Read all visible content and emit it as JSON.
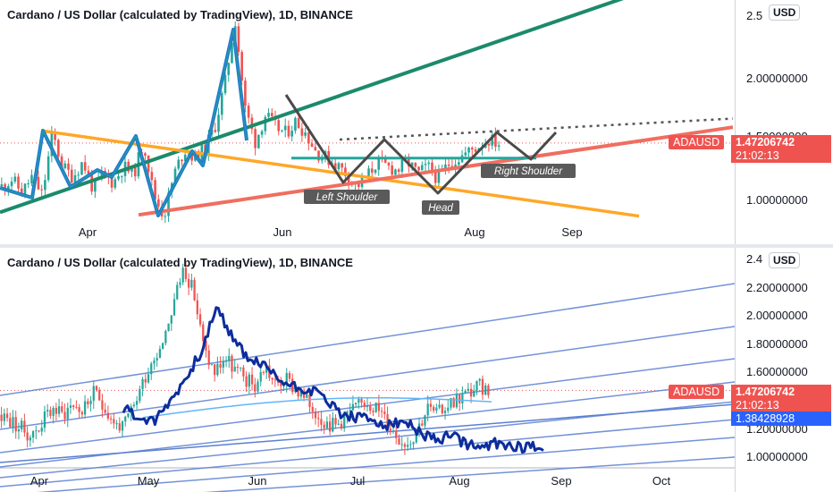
{
  "chart_data": [
    {
      "type": "candlestick",
      "title": "Cardano / US Dollar (calculated by TradingView), 1D, BINANCE",
      "currency_button": "USD",
      "y_ticks": [
        "2.5",
        "2.00000000",
        "1.50000000",
        "1.00000000"
      ],
      "x_ticks": [
        "Apr",
        "Jun",
        "Aug",
        "Sep"
      ],
      "last_price": {
        "symbol": "ADAUSD",
        "value": "1.47206742",
        "countdown": "21:02:13"
      },
      "annotations": [
        "Left Shoulder",
        "Head",
        "Right Shoulder"
      ],
      "price_path": [
        1.12,
        1.18,
        1.07,
        1.2,
        1.05,
        1.55,
        1.28,
        1.2,
        1.32,
        1.1,
        1.22,
        1.15,
        1.28,
        1.22,
        1.48,
        1.05,
        0.88,
        1.22,
        1.42,
        1.35,
        1.42,
        1.6,
        1.95,
        2.48,
        1.75,
        1.48,
        1.7,
        1.6,
        1.55,
        1.65,
        1.55,
        1.4,
        1.35,
        1.3,
        1.22,
        1.12,
        1.2,
        1.32,
        1.28,
        1.25,
        1.32,
        1.22,
        1.28,
        1.18,
        1.3,
        1.35,
        1.4,
        1.45,
        1.5,
        1.47
      ],
      "colors": {
        "up": "#26a69a",
        "down": "#ef5350",
        "green_trend": "#1b8a6b",
        "orange_trend": "#ffa726",
        "red_trend": "#f06e60",
        "pattern": "#4a4a4a",
        "swing": "#1f77d0"
      }
    },
    {
      "type": "candlestick",
      "title": "Cardano / US Dollar (calculated by TradingView), 1D, BINANCE",
      "currency_button": "USD",
      "y_ticks": [
        "2.4",
        "2.20000000",
        "2.00000000",
        "1.80000000",
        "1.60000000",
        "1.20000000",
        "1.00000000"
      ],
      "x_ticks": [
        "Apr",
        "May",
        "Jun",
        "Jul",
        "Aug",
        "Sep",
        "Oct"
      ],
      "last_price": {
        "symbol": "ADAUSD",
        "value": "1.47206742",
        "countdown": "21:02:13"
      },
      "second_price": "1.38428928",
      "price_path": [
        1.3,
        1.25,
        1.2,
        1.15,
        1.25,
        1.35,
        1.3,
        1.38,
        1.32,
        1.45,
        1.38,
        1.25,
        1.2,
        1.35,
        1.55,
        1.7,
        1.85,
        2.1,
        2.35,
        2.15,
        1.75,
        1.6,
        1.7,
        1.62,
        1.55,
        1.5,
        1.65,
        1.5,
        1.55,
        1.48,
        1.4,
        1.32,
        1.25,
        1.22,
        1.3,
        1.35,
        1.4,
        1.35,
        1.25,
        1.15,
        1.1,
        1.2,
        1.35,
        1.3,
        1.38,
        1.42,
        1.45,
        1.5,
        1.47
      ],
      "overlay_path": [
        1.35,
        1.28,
        1.25,
        1.4,
        1.55,
        1.75,
        2.05,
        1.85,
        1.7,
        1.65,
        1.55,
        1.5,
        1.48,
        1.42,
        1.3,
        1.28,
        1.26,
        1.22,
        1.25,
        1.18,
        1.12,
        1.15,
        1.1,
        1.06,
        1.1,
        1.08,
        1.07,
        1.08
      ],
      "colors": {
        "up": "#26a69a",
        "down": "#ef5350",
        "channel": "#5b7fd1",
        "overlay": "#0d2d9c",
        "ma": "#64b5f6"
      }
    }
  ]
}
